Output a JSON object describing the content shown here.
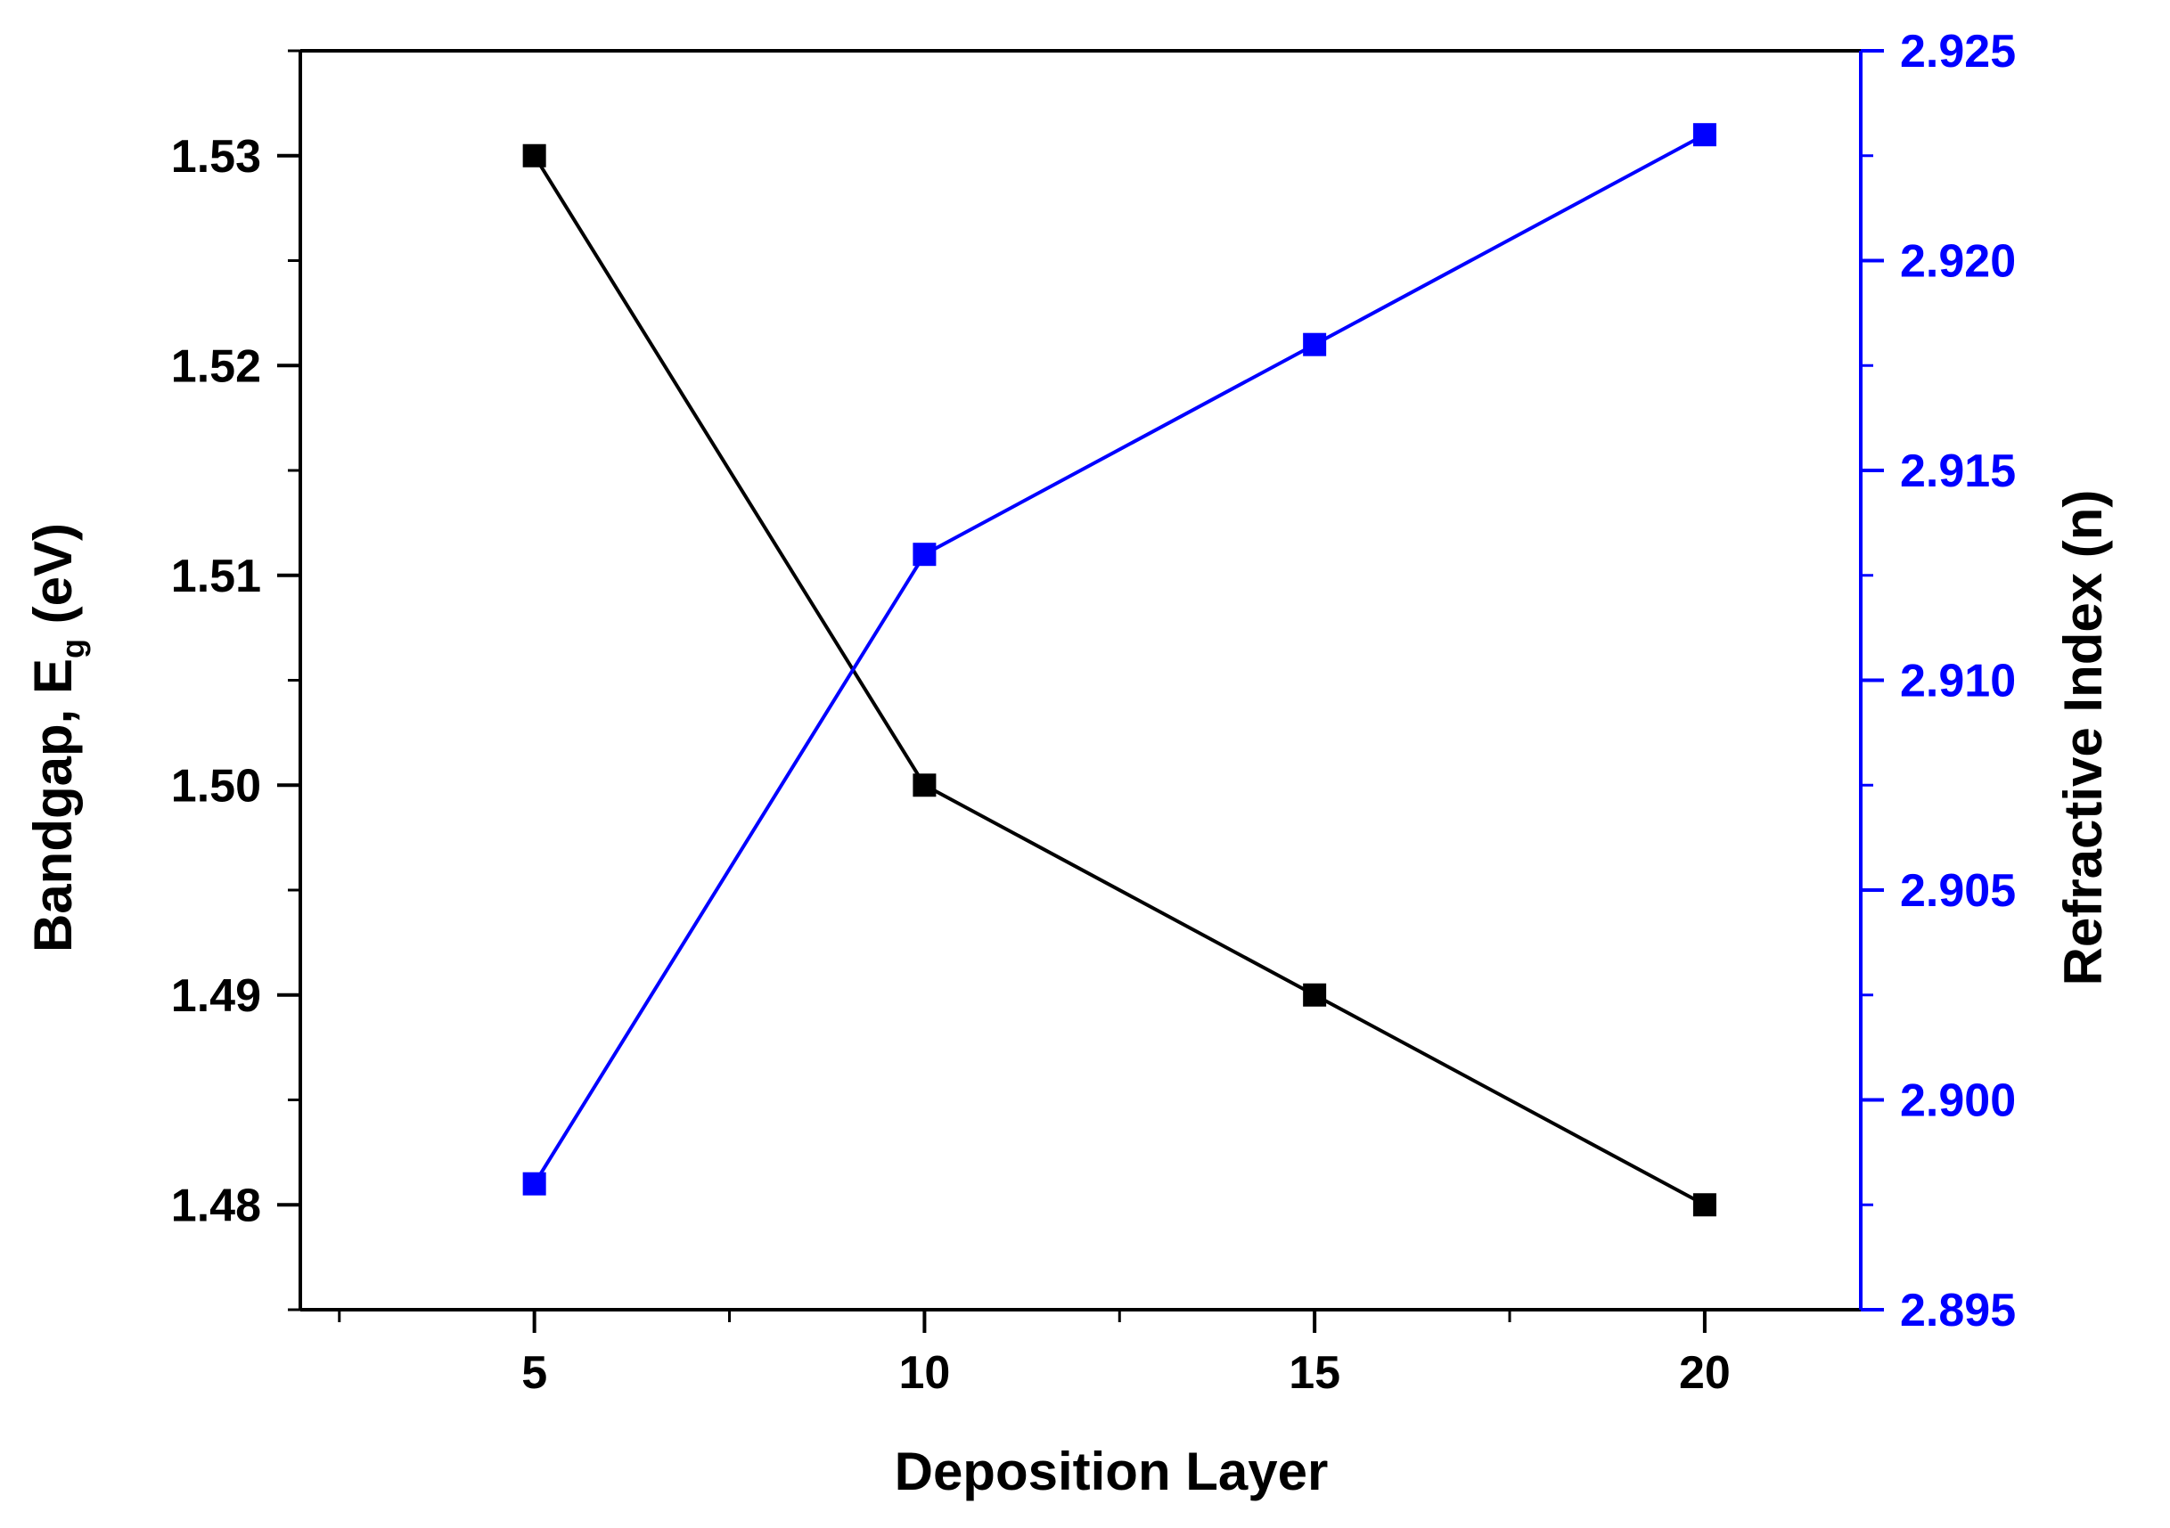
{
  "chart_data": {
    "type": "line",
    "xlabel": "Deposition Layer",
    "xlim": [
      2,
      22
    ],
    "xticks": [
      5,
      10,
      15,
      20
    ],
    "x": [
      5,
      10,
      15,
      20
    ],
    "y_left": {
      "label_main": "Bandgap, E",
      "label_sub": "g",
      "label_unit": " (eV)",
      "lim": [
        1.475,
        1.535
      ],
      "ticks": [
        "1.48",
        "1.49",
        "1.50",
        "1.51",
        "1.52",
        "1.53"
      ],
      "color": "#000000"
    },
    "y_right": {
      "label": "Refractive Index (n)",
      "lim": [
        2.895,
        2.925
      ],
      "ticks": [
        "2.895",
        "2.900",
        "2.905",
        "2.910",
        "2.915",
        "2.920",
        "2.925"
      ],
      "color": "#0000ff"
    },
    "series": [
      {
        "axis": "left",
        "color": "#000000",
        "marker": "square",
        "values": [
          1.53,
          1.5,
          1.49,
          1.48
        ]
      },
      {
        "axis": "right",
        "color": "#0000ff",
        "marker": "square",
        "values": [
          2.898,
          2.913,
          2.918,
          2.923
        ]
      }
    ],
    "grid": false,
    "legend": "none"
  }
}
